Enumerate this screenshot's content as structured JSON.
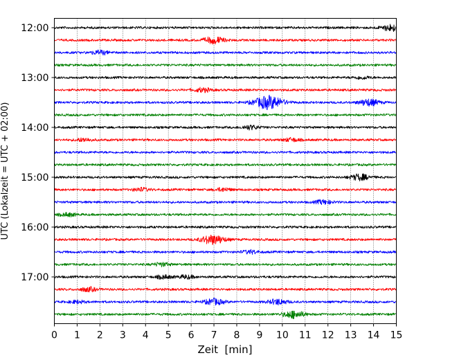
{
  "chart_data": {
    "type": "line",
    "title": "",
    "xlabel": "Zeit  [min]",
    "ylabel": "UTC (Lokalzeit = UTC + 02:00)",
    "xlim": [
      0,
      15
    ],
    "x_ticks": [
      "0",
      "1",
      "2",
      "3",
      "4",
      "5",
      "6",
      "7",
      "8",
      "9",
      "10",
      "11",
      "12",
      "13",
      "14",
      "15"
    ],
    "y_ticks": [
      "12:00",
      "13:00",
      "14:00",
      "15:00",
      "16:00",
      "17:00"
    ],
    "grid": "vertical dotted",
    "trace_colors": [
      "#000000",
      "#ff0000",
      "#0000ff",
      "#008000"
    ],
    "series": [
      {
        "start": "12:00",
        "color": "#000000",
        "events": [
          {
            "t": 14.8,
            "amp": 0.5
          }
        ]
      },
      {
        "start": "12:15",
        "color": "#ff0000",
        "events": [
          {
            "t": 7.0,
            "amp": 0.5
          }
        ]
      },
      {
        "start": "12:30",
        "color": "#0000ff",
        "events": [
          {
            "t": 2.0,
            "amp": 0.3
          }
        ]
      },
      {
        "start": "12:45",
        "color": "#008000",
        "events": []
      },
      {
        "start": "13:00",
        "color": "#000000",
        "events": [
          {
            "t": 13.5,
            "amp": 0.2
          }
        ]
      },
      {
        "start": "13:15",
        "color": "#ff0000",
        "events": [
          {
            "t": 6.5,
            "amp": 0.3
          }
        ]
      },
      {
        "start": "13:30",
        "color": "#0000ff",
        "events": [
          {
            "t": 9.4,
            "amp": 1.0
          },
          {
            "t": 13.8,
            "amp": 0.5
          }
        ]
      },
      {
        "start": "13:45",
        "color": "#008000",
        "events": []
      },
      {
        "start": "14:00",
        "color": "#000000",
        "events": [
          {
            "t": 8.6,
            "amp": 0.3
          }
        ]
      },
      {
        "start": "14:15",
        "color": "#ff0000",
        "events": [
          {
            "t": 1.3,
            "amp": 0.25
          },
          {
            "t": 10.4,
            "amp": 0.25
          }
        ]
      },
      {
        "start": "14:30",
        "color": "#0000ff",
        "events": []
      },
      {
        "start": "14:45",
        "color": "#008000",
        "events": []
      },
      {
        "start": "15:00",
        "color": "#000000",
        "events": [
          {
            "t": 13.4,
            "amp": 0.45
          }
        ]
      },
      {
        "start": "15:15",
        "color": "#ff0000",
        "events": [
          {
            "t": 3.8,
            "amp": 0.25
          },
          {
            "t": 7.4,
            "amp": 0.25
          }
        ]
      },
      {
        "start": "15:30",
        "color": "#0000ff",
        "events": [
          {
            "t": 11.8,
            "amp": 0.3
          }
        ]
      },
      {
        "start": "15:45",
        "color": "#008000",
        "events": [
          {
            "t": 0.6,
            "amp": 0.25
          }
        ]
      },
      {
        "start": "16:00",
        "color": "#000000",
        "events": []
      },
      {
        "start": "16:15",
        "color": "#ff0000",
        "events": [
          {
            "t": 6.95,
            "amp": 0.7
          }
        ]
      },
      {
        "start": "16:30",
        "color": "#0000ff",
        "events": [
          {
            "t": 8.6,
            "amp": 0.25
          }
        ]
      },
      {
        "start": "16:45",
        "color": "#008000",
        "events": [
          {
            "t": 4.7,
            "amp": 0.25
          }
        ]
      },
      {
        "start": "17:00",
        "color": "#000000",
        "events": [
          {
            "t": 4.8,
            "amp": 0.25
          },
          {
            "t": 5.8,
            "amp": 0.25
          }
        ]
      },
      {
        "start": "17:15",
        "color": "#ff0000",
        "events": [
          {
            "t": 1.5,
            "amp": 0.3
          }
        ]
      },
      {
        "start": "17:30",
        "color": "#0000ff",
        "events": [
          {
            "t": 7.0,
            "amp": 0.45
          },
          {
            "t": 9.8,
            "amp": 0.4
          },
          {
            "t": 1.0,
            "amp": 0.2
          }
        ]
      },
      {
        "start": "17:45",
        "color": "#008000",
        "events": [
          {
            "t": 10.5,
            "amp": 0.55
          }
        ]
      }
    ]
  }
}
